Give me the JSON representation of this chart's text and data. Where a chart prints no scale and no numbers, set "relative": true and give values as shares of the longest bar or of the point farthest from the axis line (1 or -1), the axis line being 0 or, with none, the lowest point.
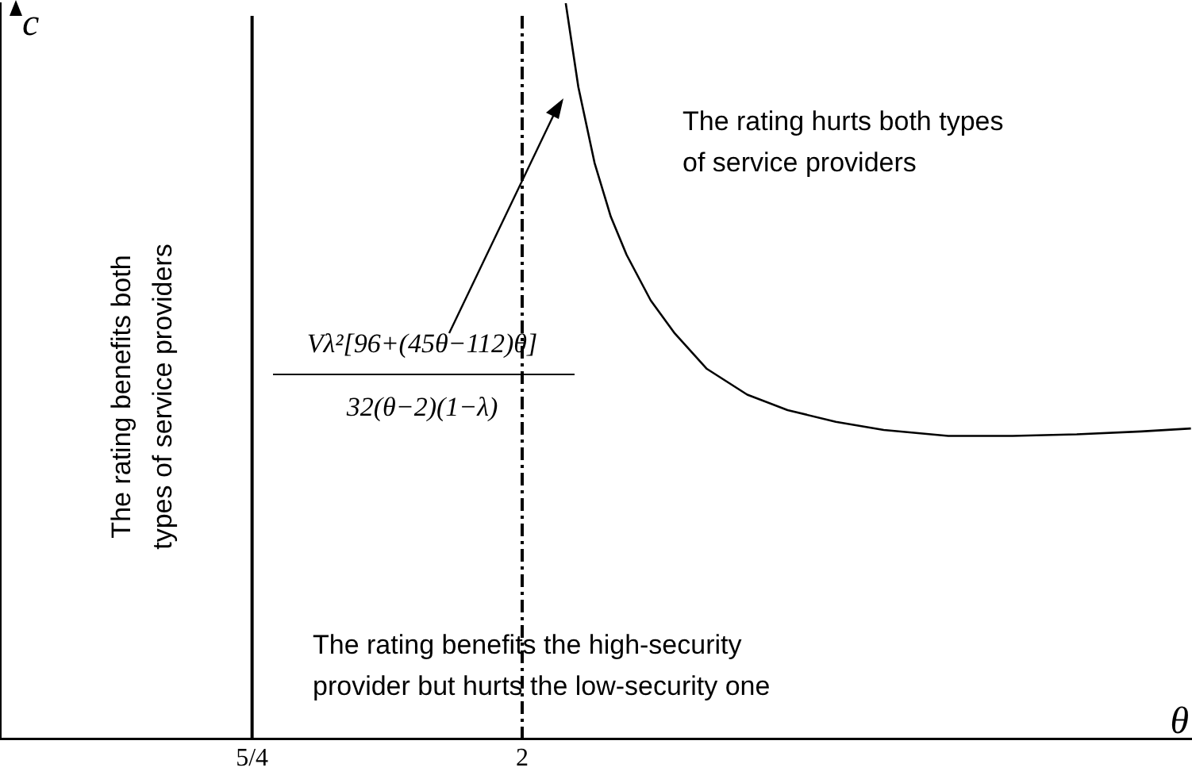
{
  "chart_data": {
    "type": "line",
    "relative": true,
    "xlabel": "θ",
    "ylabel": "c",
    "xlim": [
      0.55,
      3.86
    ],
    "xticks": [
      {
        "value": 1.25,
        "label": "5/4"
      },
      {
        "value": 2,
        "label": "2"
      }
    ],
    "x": [
      2.121,
      2.156,
      2.201,
      2.246,
      2.29,
      2.357,
      2.424,
      2.513,
      2.625,
      2.737,
      2.871,
      3.004,
      3.183,
      3.362,
      3.54,
      3.719,
      3.857
    ],
    "series": [
      {
        "color": "#000000",
        "values": [
          1.0,
          0.886,
          0.783,
          0.71,
          0.658,
          0.596,
          0.551,
          0.503,
          0.468,
          0.447,
          0.431,
          0.42,
          0.412,
          0.412,
          0.414,
          0.418,
          0.422
        ]
      }
    ],
    "ref_lines": [
      {
        "axis": "x",
        "value": 1.25,
        "color": "#000000",
        "line_style": "solid"
      },
      {
        "axis": "x",
        "value": 2,
        "color": "#000000",
        "line_style": "dashed"
      }
    ],
    "annotations": [
      "The rating hurts both types\nof service providers",
      "The rating benefits both\ntypes of service providers",
      "The rating benefits the high-security\nprovider but hurts the low-security one",
      "Vλ²[96+(45θ−112)θ]",
      "32(θ−2)(1−λ)"
    ],
    "grid": false,
    "legend": false,
    "marker": "none",
    "line_style": "solid"
  }
}
